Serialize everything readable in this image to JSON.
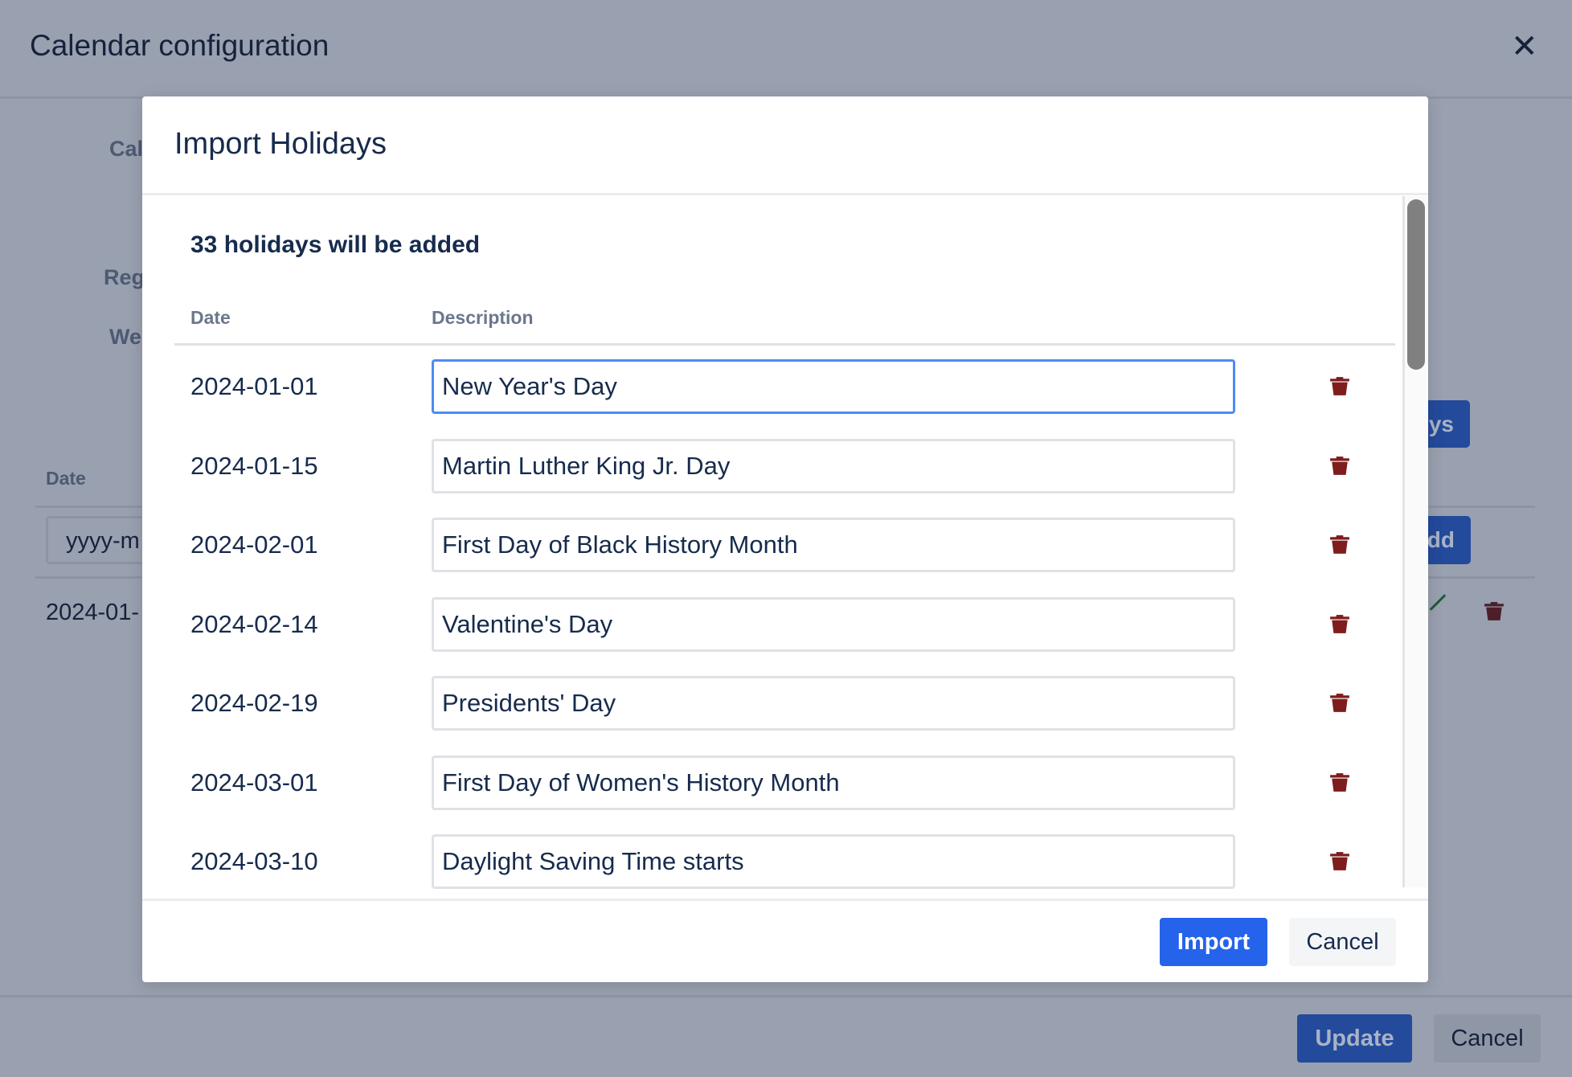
{
  "background": {
    "title": "Calendar configuration",
    "labels": [
      "Cal",
      "Reg",
      "We"
    ],
    "table_header_date": "Date",
    "date_input_placeholder": "yyyy-m",
    "import_button_partial": "ys",
    "add_button_partial": "dd",
    "row_date_partial": "2024-01-",
    "update_label": "Update",
    "cancel_label": "Cancel"
  },
  "modal": {
    "title": "Import Holidays",
    "count_text": "33 holidays will be added",
    "columns": {
      "date": "Date",
      "description": "Description"
    },
    "rows": [
      {
        "date": "2024-01-01",
        "description": "New Year's Day"
      },
      {
        "date": "2024-01-15",
        "description": "Martin Luther King Jr. Day"
      },
      {
        "date": "2024-02-01",
        "description": "First Day of Black History Month"
      },
      {
        "date": "2024-02-14",
        "description": "Valentine's Day"
      },
      {
        "date": "2024-02-19",
        "description": "Presidents' Day"
      },
      {
        "date": "2024-03-01",
        "description": "First Day of Women's History Month"
      },
      {
        "date": "2024-03-10",
        "description": "Daylight Saving Time starts"
      }
    ],
    "import_label": "Import",
    "cancel_label": "Cancel"
  },
  "colors": {
    "primary": "#2563eb",
    "danger": "#7f1d1d",
    "focus": "#4c8bf5"
  }
}
